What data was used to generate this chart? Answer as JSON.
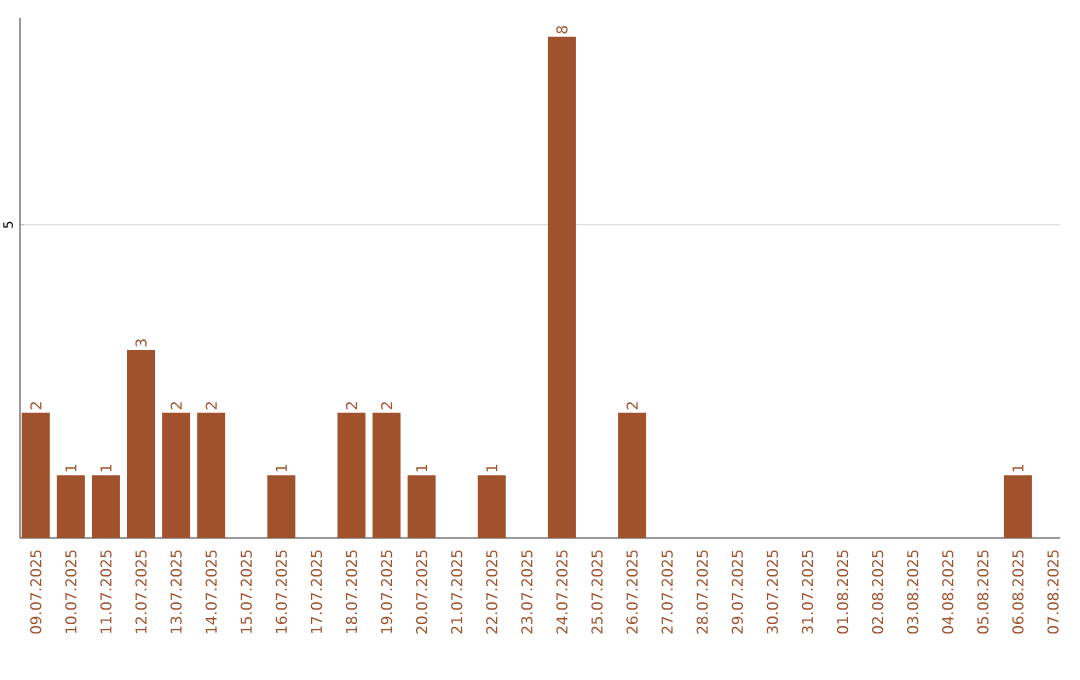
{
  "chart_data": {
    "type": "bar",
    "categories": [
      "09.07.2025",
      "10.07.2025",
      "11.07.2025",
      "12.07.2025",
      "13.07.2025",
      "14.07.2025",
      "15.07.2025",
      "16.07.2025",
      "17.07.2025",
      "18.07.2025",
      "19.07.2025",
      "20.07.2025",
      "21.07.2025",
      "22.07.2025",
      "23.07.2025",
      "24.07.2025",
      "25.07.2025",
      "26.07.2025",
      "27.07.2025",
      "28.07.2025",
      "29.07.2025",
      "30.07.2025",
      "31.07.2025",
      "01.08.2025",
      "02.08.2025",
      "03.08.2025",
      "04.08.2025",
      "05.08.2025",
      "06.08.2025",
      "07.08.2025"
    ],
    "values": [
      2,
      1,
      1,
      3,
      2,
      2,
      0,
      1,
      0,
      2,
      2,
      1,
      0,
      1,
      0,
      8,
      0,
      2,
      0,
      0,
      0,
      0,
      0,
      0,
      0,
      0,
      0,
      0,
      1,
      0
    ],
    "value_labels": [
      "2",
      "1",
      "1",
      "3",
      "2",
      "2",
      null,
      "1",
      null,
      "2",
      "2",
      "1",
      null,
      "1",
      null,
      "8",
      null,
      "2",
      null,
      null,
      null,
      null,
      null,
      null,
      null,
      null,
      null,
      null,
      "1",
      null
    ],
    "color": "#a0522d",
    "ylim": [
      0,
      8.3
    ],
    "yticks": [
      5
    ],
    "grid": "y"
  }
}
